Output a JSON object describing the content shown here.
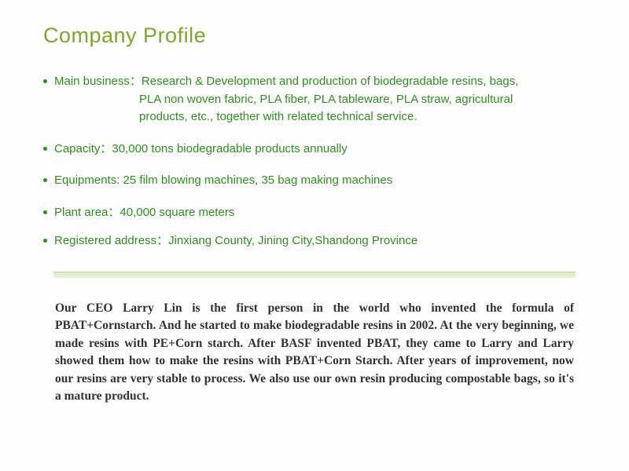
{
  "slide": {
    "title": "Company Profile",
    "title_color": "#7aa82b",
    "title_fontsize": 27,
    "bullet_color": "#2f8f1e",
    "bullet_fontsize": 15,
    "background_color": "#fefefe",
    "bullets": [
      {
        "label": "Main business：",
        "line1": "Research & Development and production of biodegradable resins, bags,",
        "line2": "PLA non woven fabric, PLA fiber,  PLA tableware, PLA straw,  agricultural",
        "line3": "products, etc., together with related technical service."
      },
      {
        "label": "Capacity：",
        "value": "30,000 tons biodegradable products annually"
      },
      {
        "label": "Equipments:  ",
        "value": "25 film blowing machines, 35 bag making machines"
      },
      {
        "label": "Plant area：",
        "value": "40,000 square meters"
      },
      {
        "label": "Registered address：",
        "value": "Jinxiang County, Jining City,Shandong Province"
      }
    ],
    "divider": {
      "color_top": "#c9db9f",
      "fill": "#dce8c5"
    },
    "story_text": "Our CEO Larry Lin is the first person in the world who invented the formula of PBAT+Cornstarch. And he started to make biodegradable resins in 2002. At the very beginning, we made resins with PE+Corn starch. After BASF invented PBAT, they came to Larry and Larry showed them how to make the resins with PBAT+Corn Starch. After years of improvement, now our resins are very stable to process. We also use our own resin producing compostable bags, so it's a mature product.",
    "story_font": "Comic Sans MS",
    "story_fontsize": 15.5,
    "story_color": "#323232"
  }
}
